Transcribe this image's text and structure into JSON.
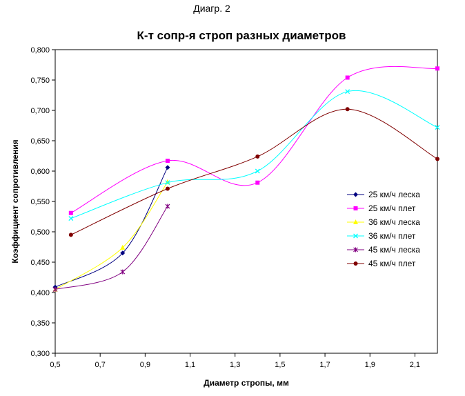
{
  "header": "Диагр. 2",
  "chart_data": {
    "type": "scatter",
    "title": "К-т сопр-я строп разных диаметров",
    "xlabel": "Диаметр стропы, мм",
    "ylabel": "Коэффициент сопротивления",
    "xlim": [
      0.5,
      2.2
    ],
    "ylim": [
      0.3,
      0.8
    ],
    "x_ticks": [
      "0,5",
      "0,7",
      "0,9",
      "1,1",
      "1,3",
      "1,5",
      "1,7",
      "1,9",
      "2,1"
    ],
    "y_ticks": [
      "0,300",
      "0,350",
      "0,400",
      "0,450",
      "0,500",
      "0,550",
      "0,600",
      "0,650",
      "0,700",
      "0,750",
      "0,800"
    ],
    "smoothed_lines": true,
    "grid": false,
    "legend_position": "right",
    "series": [
      {
        "name": "25 км/ч леска",
        "color": "#000080",
        "marker": "diamond",
        "x": [
          0.5,
          0.8,
          1.0
        ],
        "y": [
          0.409,
          0.465,
          0.606
        ]
      },
      {
        "name": "25 км/ч плет",
        "color": "#ff00ff",
        "marker": "square",
        "x": [
          0.57,
          1.0,
          1.4,
          1.8,
          2.2
        ],
        "y": [
          0.531,
          0.617,
          0.581,
          0.754,
          0.769
        ]
      },
      {
        "name": "36 км/ч леска",
        "color": "#ffff00",
        "marker": "triangle",
        "x": [
          0.5,
          0.8,
          1.0
        ],
        "y": [
          0.405,
          0.474,
          0.582
        ]
      },
      {
        "name": "36 км/ч плет",
        "color": "#00ffff",
        "marker": "x",
        "x": [
          0.57,
          1.0,
          1.4,
          1.8,
          2.2
        ],
        "y": [
          0.522,
          0.581,
          0.6,
          0.731,
          0.672
        ]
      },
      {
        "name": "45 км/ч леска",
        "color": "#800080",
        "marker": "star",
        "x": [
          0.5,
          0.8,
          1.0
        ],
        "y": [
          0.405,
          0.434,
          0.542
        ]
      },
      {
        "name": "45 км/ч плет",
        "color": "#800000",
        "marker": "circle",
        "x": [
          0.57,
          1.0,
          1.4,
          1.8,
          2.2
        ],
        "y": [
          0.495,
          0.571,
          0.624,
          0.702,
          0.62
        ]
      }
    ]
  }
}
